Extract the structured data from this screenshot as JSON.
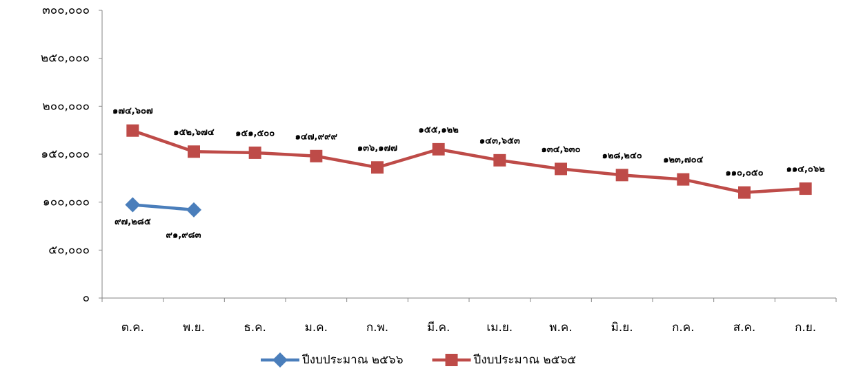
{
  "chart_data": {
    "type": "line",
    "categories": [
      "ต.ค.",
      "พ.ย.",
      "ธ.ค.",
      "ม.ค.",
      "ก.พ.",
      "มี.ค.",
      "เม.ย.",
      "พ.ค.",
      "มิ.ย.",
      "ก.ค.",
      "ส.ค.",
      "ก.ย."
    ],
    "series": [
      {
        "name": "ปีงบประมาณ ๒๕๖๖",
        "color": "#4a7ebb",
        "marker": "diamond",
        "values": [
          97285,
          91983,
          null,
          null,
          null,
          null,
          null,
          null,
          null,
          null,
          null,
          null
        ],
        "value_labels": [
          "๙๗,๒๘๕",
          "๙๑,๙๘๓",
          null,
          null,
          null,
          null,
          null,
          null,
          null,
          null,
          null,
          null
        ]
      },
      {
        "name": "ปีงบประมาณ ๒๕๖๕",
        "color": "#be4b48",
        "marker": "square",
        "values": [
          174607,
          152674,
          151500,
          147999,
          136177,
          155122,
          143653,
          134630,
          128240,
          123704,
          110050,
          114062
        ],
        "value_labels": [
          "๑๗๔,๖๐๗",
          "๑๕๒,๖๗๔",
          "๑๕๑,๕๐๐",
          "๑๔๗,๙๙๙",
          "๑๓๖,๑๗๗",
          "๑๕๕,๑๒๒",
          "๑๔๓,๖๕๓",
          "๑๓๔,๖๓๐",
          "๑๒๘,๒๔๐",
          "๑๒๓,๗๐๔",
          "๑๑๐,๐๕๐",
          "๑๑๔,๐๖๒"
        ]
      }
    ],
    "ylim": [
      0,
      300000
    ],
    "yticks": [
      {
        "value": 0,
        "label": "๐"
      },
      {
        "value": 50000,
        "label": "๕๐,๐๐๐"
      },
      {
        "value": 100000,
        "label": "๑๐๐,๐๐๐"
      },
      {
        "value": 150000,
        "label": "๑๕๐,๐๐๐"
      },
      {
        "value": 200000,
        "label": "๒๐๐,๐๐๐"
      },
      {
        "value": 250000,
        "label": "๒๕๐,๐๐๐"
      },
      {
        "value": 300000,
        "label": "๓๐๐,๐๐๐"
      }
    ],
    "grid": false,
    "legend": "bottom"
  }
}
